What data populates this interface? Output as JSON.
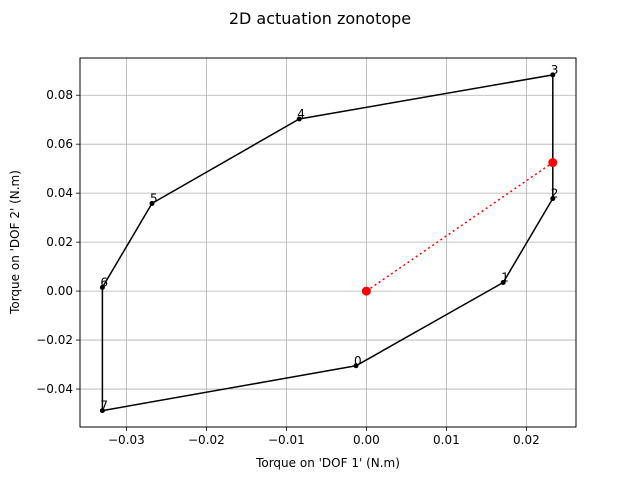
{
  "chart_data": {
    "type": "line",
    "title": "2D actuation zonotope",
    "xlabel": "Torque on 'DOF 1' (N.m)",
    "ylabel": "Torque on 'DOF 2' (N.m)",
    "xlim": [
      -0.0358,
      0.0262
    ],
    "ylim": [
      -0.0555,
      0.0952
    ],
    "grid": true,
    "xticks": [
      -0.03,
      -0.02,
      -0.01,
      0.0,
      0.01,
      0.02
    ],
    "xtick_labels": [
      "−0.03",
      "−0.02",
      "−0.01",
      "0.00",
      "0.01",
      "0.02"
    ],
    "yticks": [
      -0.04,
      -0.02,
      0.0,
      0.02,
      0.04,
      0.06,
      0.08
    ],
    "ytick_labels": [
      "−0.04",
      "−0.02",
      "0.00",
      "0.02",
      "0.04",
      "0.06",
      "0.08"
    ],
    "vertices": [
      {
        "label": "0",
        "x": -0.0013,
        "y": -0.0305
      },
      {
        "label": "1",
        "x": 0.0171,
        "y": 0.0035
      },
      {
        "label": "2",
        "x": 0.0233,
        "y": 0.0378
      },
      {
        "label": "3",
        "x": 0.0233,
        "y": 0.0883
      },
      {
        "label": "4",
        "x": -0.0084,
        "y": 0.0703
      },
      {
        "label": "5",
        "x": -0.0268,
        "y": 0.0358
      },
      {
        "label": "6",
        "x": -0.033,
        "y": 0.0015
      },
      {
        "label": "7",
        "x": -0.033,
        "y": -0.0488
      }
    ],
    "polygon_color": "#000000",
    "points": [
      {
        "x": 0.0,
        "y": 0.0
      },
      {
        "x": 0.0233,
        "y": 0.0525
      }
    ],
    "point_color": "#ff0000"
  }
}
